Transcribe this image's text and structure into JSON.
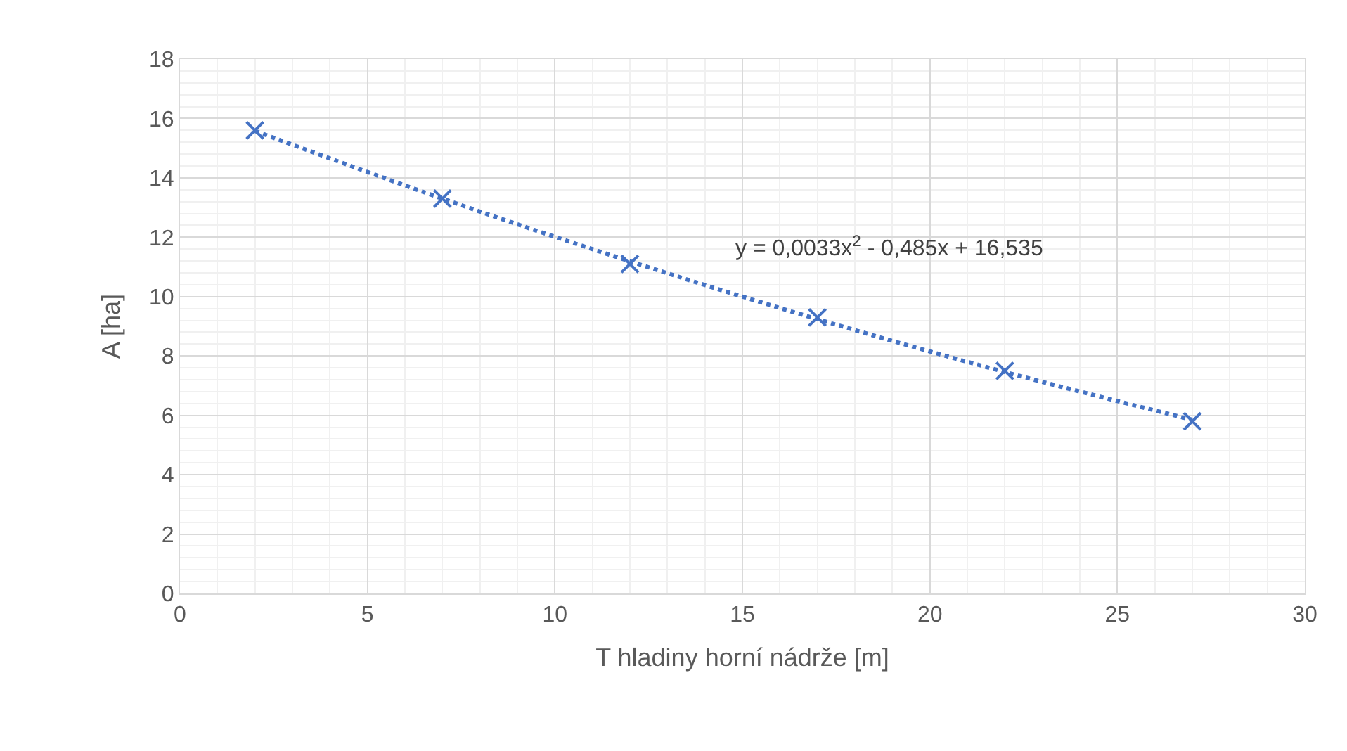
{
  "chart_data": {
    "type": "scatter",
    "xlabel": "T hladiny horní nádrže [m]",
    "ylabel": "A [ha]",
    "series": [
      {
        "color": "#4472c4",
        "marker": "cross",
        "x": [
          2,
          7,
          12,
          17,
          22,
          27
        ],
        "values": [
          15.6,
          13.3,
          11.1,
          9.3,
          7.5,
          5.8
        ]
      },
      {
        "type": "line",
        "color": "#4472c4",
        "marker": "none",
        "line_style": "dotted",
        "x": [
          2,
          7,
          12,
          17,
          22,
          27
        ],
        "values": [
          15.58,
          13.3,
          11.19,
          9.24,
          7.46,
          5.85
        ]
      }
    ],
    "annotations": [
      "y = 0,0033x$^{2}$ - 0,485x + 16,535"
    ],
    "xlim": [
      0,
      30
    ],
    "xticks": [
      0,
      5,
      10,
      15,
      20,
      25,
      30
    ],
    "ylim": [
      0,
      18
    ],
    "yticks": [
      0,
      2,
      4,
      6,
      8,
      10,
      12,
      14,
      16,
      18
    ],
    "grid": true
  }
}
